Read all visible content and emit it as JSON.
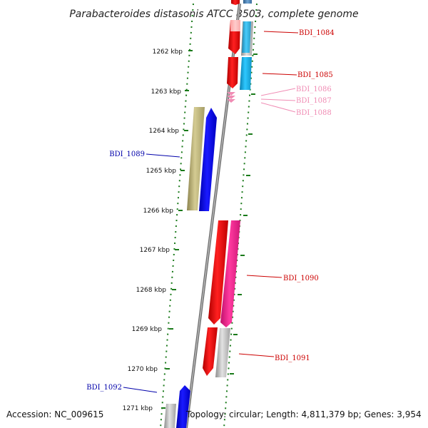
{
  "title": "Parabacteroides distasonis ATCC 8503, complete genome",
  "footer": {
    "accession": "Accession: NC_009615",
    "topology": "Topology: circular; Length: 4,811,379 bp; Genes: 3,954"
  },
  "colors": {
    "backbone": "#8a8a8a",
    "tick": "#1a7a1a",
    "forward_label": "#cc0000",
    "reverse_label": "#0000aa",
    "faded_label": "#f08cb4"
  },
  "scale": {
    "ticks": [
      "1262 kbp",
      "1263 kbp",
      "1264 kbp",
      "1265 kbp",
      "1266 kbp",
      "1267 kbp",
      "1268 kbp",
      "1269 kbp",
      "1270 kbp",
      "1271 kbp"
    ]
  },
  "genes": [
    {
      "label": "BDI_1084",
      "strand": "forward",
      "color": "#cc0000"
    },
    {
      "label": "BDI_1085",
      "strand": "forward",
      "color": "#cc0000"
    },
    {
      "label": "BDI_1086",
      "strand": "forward",
      "color": "#f08cb4"
    },
    {
      "label": "BDI_1087",
      "strand": "forward",
      "color": "#f08cb4"
    },
    {
      "label": "BDI_1088",
      "strand": "forward",
      "color": "#f08cb4"
    },
    {
      "label": "BDI_1089",
      "strand": "reverse",
      "color": "#0000aa"
    },
    {
      "label": "BDI_1090",
      "strand": "forward",
      "color": "#cc0000"
    },
    {
      "label": "BDI_1091",
      "strand": "forward",
      "color": "#cc0000"
    },
    {
      "label": "BDI_1092",
      "strand": "reverse",
      "color": "#0000aa"
    }
  ]
}
